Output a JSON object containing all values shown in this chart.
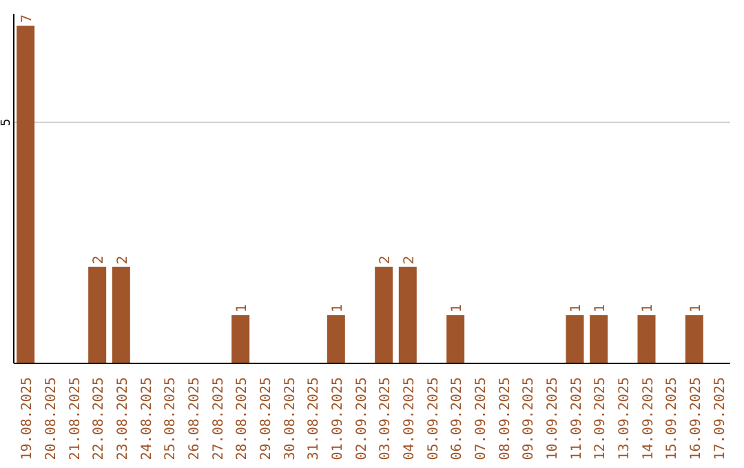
{
  "chart_data": {
    "type": "bar",
    "categories": [
      "19.08.2025",
      "20.08.2025",
      "21.08.2025",
      "22.08.2025",
      "23.08.2025",
      "24.08.2025",
      "25.08.2025",
      "26.08.2025",
      "27.08.2025",
      "28.08.2025",
      "29.08.2025",
      "30.08.2025",
      "31.08.2025",
      "01.09.2025",
      "02.09.2025",
      "03.09.2025",
      "04.09.2025",
      "05.09.2025",
      "06.09.2025",
      "07.09.2025",
      "08.09.2025",
      "09.09.2025",
      "10.09.2025",
      "11.09.2025",
      "12.09.2025",
      "13.09.2025",
      "14.09.2025",
      "15.09.2025",
      "16.09.2025",
      "17.09.2025"
    ],
    "values": [
      7,
      0,
      0,
      2,
      2,
      0,
      0,
      0,
      0,
      1,
      0,
      0,
      0,
      1,
      0,
      2,
      2,
      0,
      1,
      0,
      0,
      0,
      0,
      1,
      1,
      0,
      1,
      0,
      1,
      0
    ],
    "value_labels": [
      "7",
      null,
      null,
      "2",
      "2",
      null,
      null,
      null,
      null,
      "1",
      null,
      null,
      null,
      "1",
      null,
      "2",
      "2",
      null,
      "1",
      null,
      null,
      null,
      null,
      "1",
      "1",
      null,
      "1",
      null,
      "1",
      null
    ],
    "color": "#a0562a",
    "ylim": [
      0,
      7.25
    ],
    "yticks": [
      5
    ],
    "grid": "y",
    "legend": false
  }
}
